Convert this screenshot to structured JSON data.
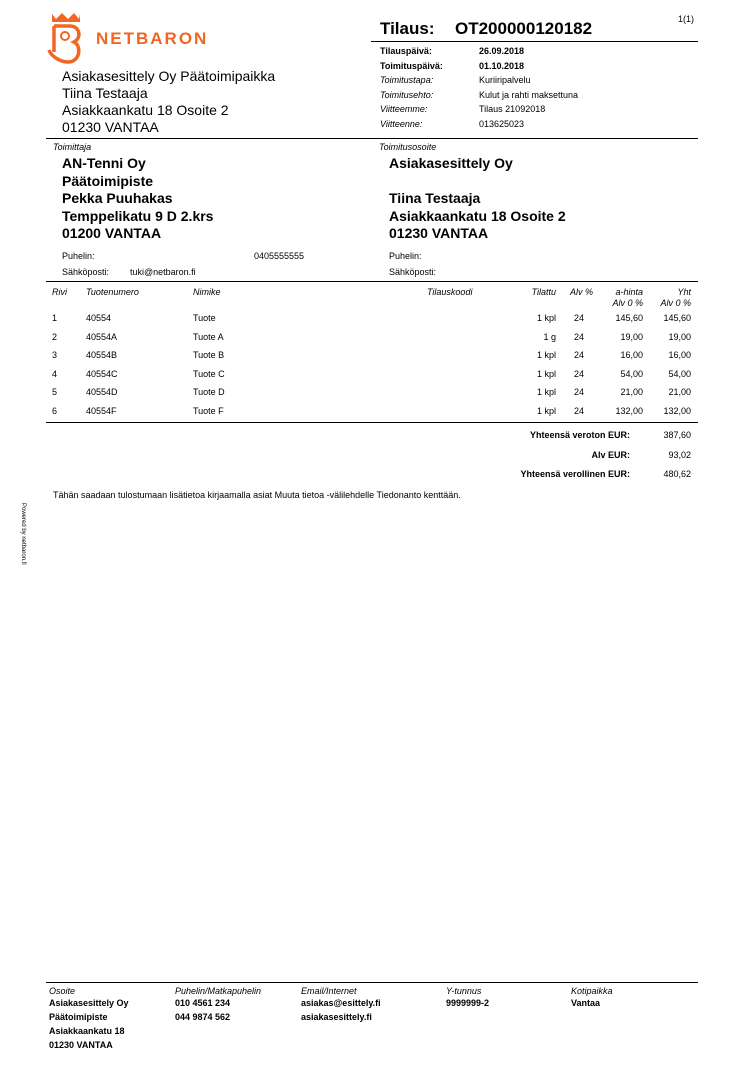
{
  "logo": {
    "text": "NETBARON",
    "color": "#f26522"
  },
  "page_number": "1(1)",
  "order": {
    "label": "Tilaus:",
    "number": "OT200000120182"
  },
  "order_info": [
    {
      "label": "Tilauspäivä:",
      "value": "26.09.2018",
      "bold": true
    },
    {
      "label": "Toimituspäivä:",
      "value": "01.10.2018",
      "bold": true
    },
    {
      "label": "Toimitustapa:",
      "value": "Kuriiripalvelu",
      "bold": false
    },
    {
      "label": "Toimitusehto:",
      "value": "Kulut ja rahti maksettuna",
      "bold": false
    },
    {
      "label": "Viitteemme:",
      "value": "Tilaus 21092018",
      "bold": false
    },
    {
      "label": "Viitteenne:",
      "value": "013625023",
      "bold": false
    }
  ],
  "customer": {
    "lines": [
      "Asiakasesittely Oy Päätoimipaikka",
      "Tiina Testaaja",
      "Asiakkaankatu 18 Osoite 2",
      "01230 VANTAA"
    ]
  },
  "supplier": {
    "heading": "Toimittaja",
    "lines": [
      "AN-Tenni Oy",
      "Päätoimipiste",
      "Pekka Puuhakas",
      "Temppelikatu 9 D 2.krs",
      "01200 VANTAA"
    ],
    "phone_label": "Puhelin:",
    "phone": "0405555555",
    "email_label": "Sähköposti:",
    "email": "tuki@netbaron.fi"
  },
  "delivery": {
    "heading": "Toimitusosoite",
    "lines": [
      "Asiakasesittely Oy",
      "",
      "Tiina Testaaja",
      "Asiakkaankatu 18 Osoite 2",
      "01230 VANTAA"
    ],
    "phone_label": "Puhelin:",
    "email_label": "Sähköposti:"
  },
  "table": {
    "headers": {
      "rivi": "Rivi",
      "tuotenumero": "Tuotenumero",
      "nimike": "Nimike",
      "tilauskoodi": "Tilauskoodi",
      "tilattu": "Tilattu",
      "alv": "Alv %",
      "ahinta": "a-hinta",
      "ahinta2": "Alv 0 %",
      "yht": "Yht",
      "yht2": "Alv 0 %"
    },
    "rows": [
      {
        "rivi": "1",
        "tuotenumero": "40554",
        "nimike": "Tuote",
        "tilauskoodi": "",
        "tilattu": "1 kpl",
        "alv": "24",
        "ahinta": "145,60",
        "yht": "145,60"
      },
      {
        "rivi": "2",
        "tuotenumero": "40554A",
        "nimike": "Tuote A",
        "tilauskoodi": "",
        "tilattu": "1 g",
        "alv": "24",
        "ahinta": "19,00",
        "yht": "19,00"
      },
      {
        "rivi": "3",
        "tuotenumero": "40554B",
        "nimike": "Tuote B",
        "tilauskoodi": "",
        "tilattu": "1 kpl",
        "alv": "24",
        "ahinta": "16,00",
        "yht": "16,00"
      },
      {
        "rivi": "4",
        "tuotenumero": "40554C",
        "nimike": "Tuote C",
        "tilauskoodi": "",
        "tilattu": "1 kpl",
        "alv": "24",
        "ahinta": "54,00",
        "yht": "54,00"
      },
      {
        "rivi": "5",
        "tuotenumero": "40554D",
        "nimike": "Tuote D",
        "tilauskoodi": "",
        "tilattu": "1 kpl",
        "alv": "24",
        "ahinta": "21,00",
        "yht": "21,00"
      },
      {
        "rivi": "6",
        "tuotenumero": "40554F",
        "nimike": "Tuote F",
        "tilauskoodi": "",
        "tilattu": "1 kpl",
        "alv": "24",
        "ahinta": "132,00",
        "yht": "132,00"
      }
    ]
  },
  "totals": [
    {
      "label": "Yhteensä veroton EUR:",
      "value": "387,60"
    },
    {
      "label": "Alv EUR:",
      "value": "93,02"
    },
    {
      "label": "Yhteensä verollinen EUR:",
      "value": "480,62"
    }
  ],
  "note": "Tähän saadaan tulostumaan lisätietoa kirjaamalla asiat Muuta tietoa -välilehdelle Tiedonanto kenttään.",
  "powered_by": "Powered by netbaron.fi",
  "footer": [
    {
      "heading": "Osoite",
      "lines": [
        "Asiakasesittely Oy",
        "Päätoimipiste",
        "Asiakkaankatu 18",
        "01230 VANTAA"
      ]
    },
    {
      "heading": "Puhelin/Matkapuhelin",
      "lines": [
        "010 4561 234",
        "044 9874 562"
      ]
    },
    {
      "heading": "Email/Internet",
      "lines": [
        "asiakas@esittely.fi",
        "asiakasesittely.fi"
      ]
    },
    {
      "heading": "Y-tunnus",
      "lines": [
        "9999999-2"
      ]
    },
    {
      "heading": "Kotipaikka",
      "lines": [
        "Vantaa"
      ]
    }
  ]
}
